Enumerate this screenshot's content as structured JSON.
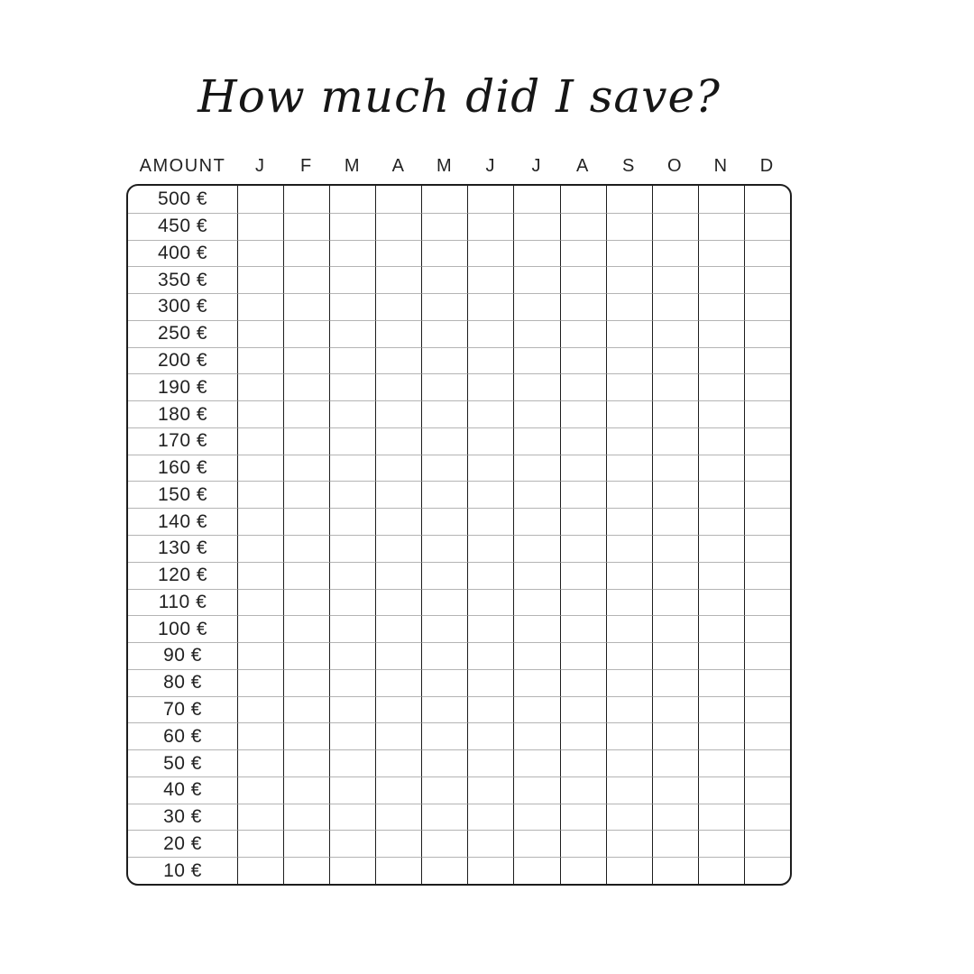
{
  "title": "How much did I save?",
  "table": {
    "amount_header": "AMOUNT",
    "months": [
      "J",
      "F",
      "M",
      "A",
      "M",
      "J",
      "J",
      "A",
      "S",
      "O",
      "N",
      "D"
    ],
    "amounts": [
      "500 €",
      "450 €",
      "400 €",
      "350 €",
      "300 €",
      "250 €",
      "200 €",
      "190 €",
      "180 €",
      "170 €",
      "160 €",
      "150 €",
      "140 €",
      "130 €",
      "120 €",
      "110 €",
      "100 €",
      "90 €",
      "80 €",
      "70 €",
      "60 €",
      "50 €",
      "40 €",
      "30 €",
      "20 €",
      "10 €"
    ]
  },
  "colors": {
    "text": "#222222",
    "title_text": "#161616",
    "grid_vertical_line": "#1d1d1d",
    "grid_horizontal_line": "#b4b4b4",
    "outer_border": "#1d1d1d",
    "background": "#ffffff"
  }
}
